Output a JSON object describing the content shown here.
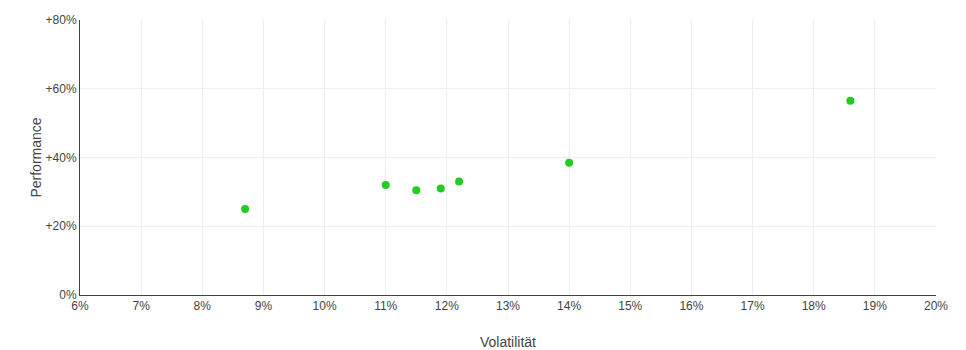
{
  "chart_data": {
    "type": "scatter",
    "xlabel": "Volatilität",
    "ylabel": "Performance",
    "x": [
      0.087,
      0.11,
      0.115,
      0.119,
      0.122,
      0.14,
      0.186
    ],
    "values": [
      0.25,
      0.32,
      0.305,
      0.31,
      0.33,
      0.385,
      0.565
    ],
    "color": "#22cc22",
    "marker": "circle",
    "xlim": [
      0.06,
      0.2
    ],
    "ylim": [
      0.0,
      0.8
    ],
    "xticks": [
      {
        "value": 0.06,
        "label": "6%"
      },
      {
        "value": 0.07,
        "label": "7%"
      },
      {
        "value": 0.08,
        "label": "8%"
      },
      {
        "value": 0.09,
        "label": "9%"
      },
      {
        "value": 0.1,
        "label": "10%"
      },
      {
        "value": 0.11,
        "label": "11%"
      },
      {
        "value": 0.12,
        "label": "12%"
      },
      {
        "value": 0.13,
        "label": "13%"
      },
      {
        "value": 0.14,
        "label": "14%"
      },
      {
        "value": 0.15,
        "label": "15%"
      },
      {
        "value": 0.16,
        "label": "16%"
      },
      {
        "value": 0.17,
        "label": "17%"
      },
      {
        "value": 0.18,
        "label": "18%"
      },
      {
        "value": 0.19,
        "label": "19%"
      },
      {
        "value": 0.2,
        "label": "20%"
      }
    ],
    "yticks": [
      {
        "value": 0.0,
        "label": "0%"
      },
      {
        "value": 0.2,
        "label": "+20%"
      },
      {
        "value": 0.4,
        "label": "+40%"
      },
      {
        "value": 0.6,
        "label": "+60%"
      },
      {
        "value": 0.8,
        "label": "+80%"
      }
    ],
    "grid": true
  }
}
